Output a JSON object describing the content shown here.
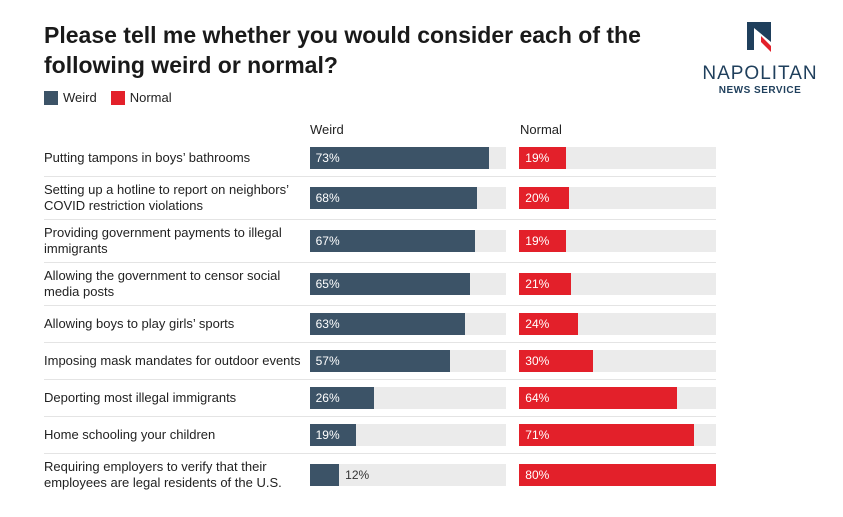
{
  "chart_data": {
    "type": "bar",
    "title": "Please tell me whether you would consider each of the following weird or normal?",
    "categories": [
      "Putting tampons in boys’ bathrooms",
      "Setting up a hotline to report on neighbors’ COVID restriction violations",
      "Providing government payments to illegal immigrants",
      "Allowing the government to censor social media posts",
      "Allowing boys to play girls’ sports",
      "Imposing mask mandates for outdoor events",
      "Deporting most illegal immigrants",
      "Home schooling your children",
      "Requiring employers to verify that their employees are legal residents of the U.S."
    ],
    "series": [
      {
        "name": "Weird",
        "color": "#3c5367",
        "values": [
          73,
          68,
          67,
          65,
          63,
          57,
          26,
          19,
          12
        ],
        "value_labels": [
          "73%",
          "68%",
          "67%",
          "65%",
          "63%",
          "57%",
          "26%",
          "19%",
          "12%"
        ]
      },
      {
        "name": "Normal",
        "color": "#e3202a",
        "values": [
          19,
          20,
          19,
          21,
          24,
          30,
          64,
          71,
          80
        ],
        "value_labels": [
          "19%",
          "20%",
          "19%",
          "21%",
          "24%",
          "30%",
          "64%",
          "71%",
          "80%"
        ]
      }
    ],
    "xlim": [
      0,
      80
    ]
  },
  "logo": {
    "name": "NAPOLITAN",
    "subtitle": "NEWS SERVICE"
  }
}
